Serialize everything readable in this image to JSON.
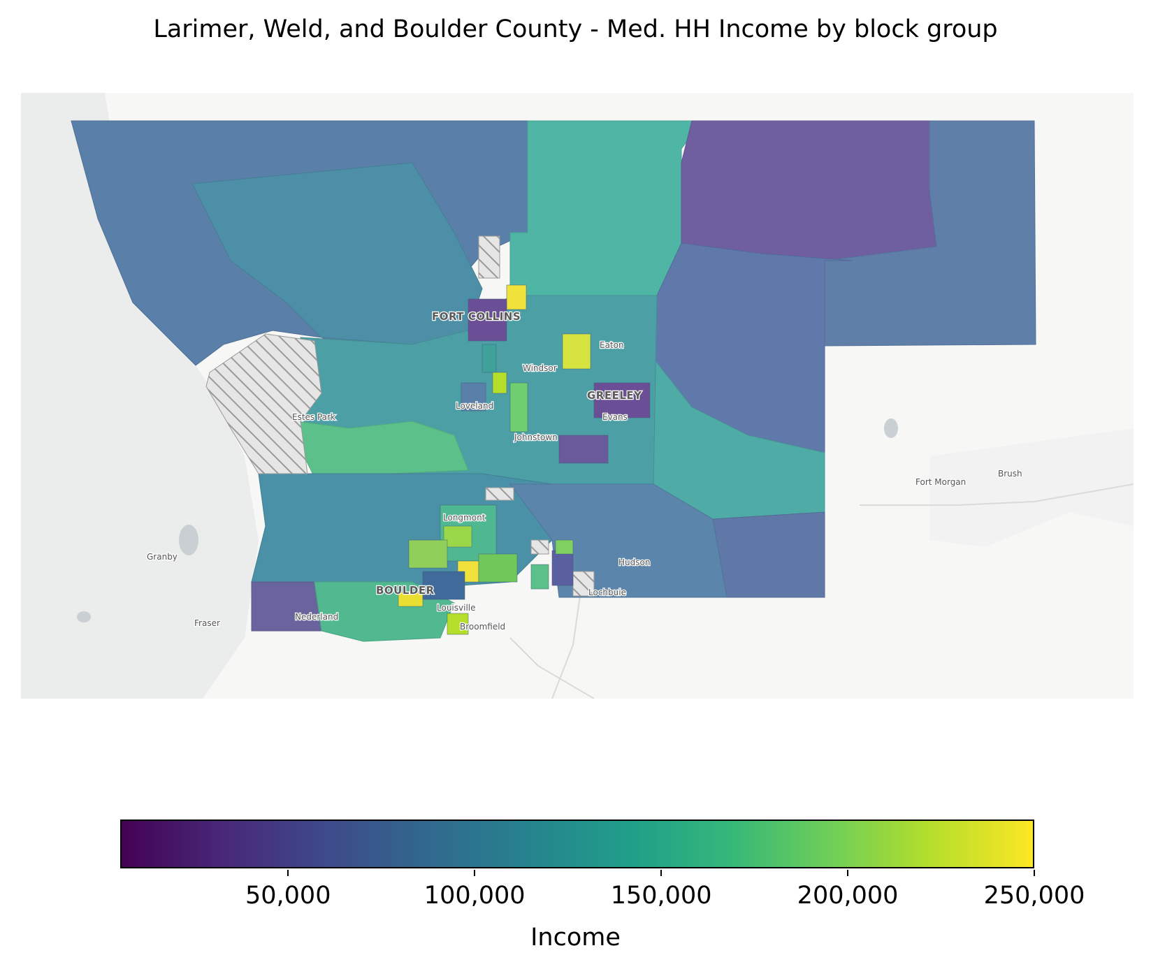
{
  "title": "Larimer, Weld, and Boulder County - Med. HH Income by block group",
  "colorbar": {
    "label": "Income",
    "min": 5000,
    "max": 250000,
    "colormap": "viridis",
    "ticks": [
      {
        "value": 50000,
        "label": "50,000"
      },
      {
        "value": 100000,
        "label": "100,000"
      },
      {
        "value": 150000,
        "label": "150,000"
      },
      {
        "value": 200000,
        "label": "200,000"
      },
      {
        "value": 250000,
        "label": "250,000"
      }
    ],
    "stops": [
      "#440154",
      "#482878",
      "#3e4989",
      "#31688e",
      "#26828e",
      "#1f9e89",
      "#35b779",
      "#6ece58",
      "#b5de2b",
      "#fde725"
    ]
  },
  "map": {
    "basemap": "light gray",
    "missing_data": "gray hatched",
    "place_labels": [
      "FORT COLLINS",
      "Eaton",
      "Windsor",
      "GREELEY",
      "Loveland",
      "Evans",
      "Estes Park",
      "Johnstown",
      "Fort Morgan",
      "Brush",
      "Longmont",
      "Granby",
      "Hudson",
      "BOULDER",
      "Lochbuie",
      "Louisville",
      "Nederland",
      "Fraser",
      "Broomfield"
    ],
    "county_colors": {
      "larimer_mountains": "#5a7fa8",
      "weld_northeast": "#6f5fa0",
      "weld_north": "#4fb5a4",
      "weld_east": "#5f79aa",
      "front_range": "#4c96a8",
      "plains_south": "#4ea9a8",
      "high_income": "#f0e23a"
    }
  }
}
